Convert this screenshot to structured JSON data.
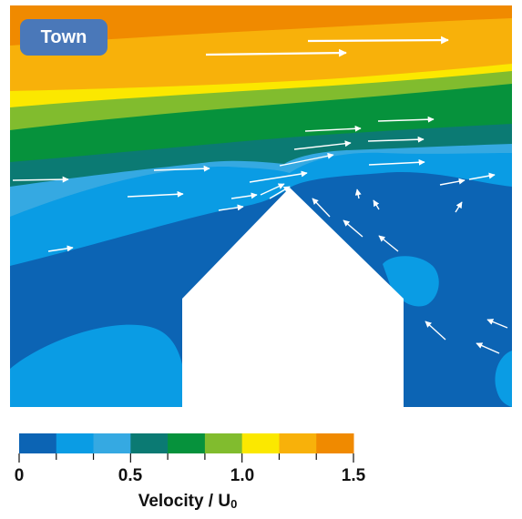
{
  "label": "Town",
  "colorbar": {
    "title": "Velocity / U",
    "title_subscript": "0",
    "ticks": [
      "0",
      "0.5",
      "1.0",
      "1.5"
    ],
    "colors": [
      "#0c64b4",
      "#0a9ce4",
      "#35a9e2",
      "#0b7a73",
      "#06923c",
      "#81bc2e",
      "#fbe800",
      "#f8b10a",
      "#f08a00"
    ]
  },
  "chart_data": {
    "type": "diagram",
    "description_items": [
      "Town"
    ],
    "scale": {
      "min": 0,
      "max": 1.5
    }
  }
}
